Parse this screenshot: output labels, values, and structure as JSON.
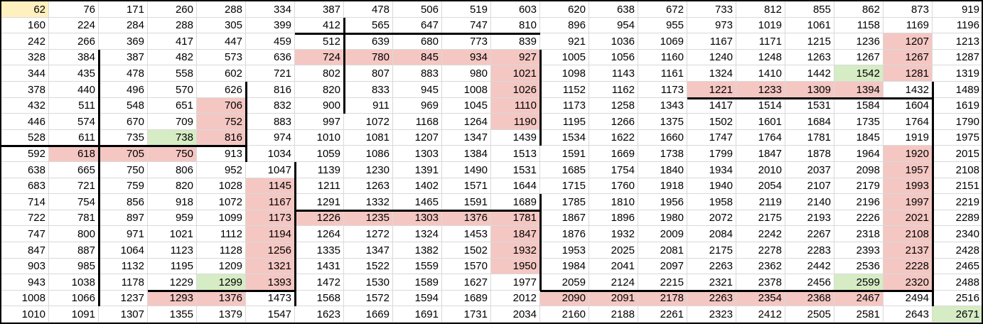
{
  "colors": {
    "red": "#f4c7c3",
    "green": "#d6ecc4",
    "yellow": "#fff0c0"
  },
  "grid": [
    [
      62,
      76,
      171,
      260,
      288,
      334,
      387,
      478,
      506,
      519,
      603,
      620,
      638,
      672,
      733,
      812,
      855,
      862,
      873,
      919
    ],
    [
      160,
      224,
      284,
      288,
      305,
      399,
      412,
      565,
      647,
      747,
      810,
      896,
      954,
      955,
      973,
      1019,
      1061,
      1158,
      1169,
      1196
    ],
    [
      242,
      266,
      369,
      417,
      447,
      459,
      512,
      639,
      680,
      773,
      839,
      921,
      1036,
      1069,
      1167,
      1171,
      1215,
      1236,
      1207,
      1213
    ],
    [
      328,
      384,
      387,
      482,
      573,
      636,
      724,
      780,
      845,
      934,
      927,
      1005,
      1056,
      1160,
      1240,
      1248,
      1263,
      1267,
      1267,
      1287
    ],
    [
      344,
      435,
      478,
      558,
      602,
      721,
      802,
      807,
      883,
      980,
      1021,
      1098,
      1143,
      1161,
      1324,
      1410,
      1442,
      1542,
      1281,
      1319
    ],
    [
      378,
      440,
      496,
      570,
      626,
      816,
      820,
      833,
      945,
      1008,
      1026,
      1152,
      1162,
      1173,
      1221,
      1233,
      1309,
      1394,
      1432,
      1489
    ],
    [
      432,
      511,
      548,
      651,
      706,
      832,
      900,
      911,
      969,
      1045,
      1110,
      1173,
      1258,
      1343,
      1417,
      1514,
      1531,
      1584,
      1604,
      1619
    ],
    [
      446,
      574,
      670,
      709,
      752,
      883,
      997,
      1072,
      1168,
      1264,
      1190,
      1195,
      1266,
      1375,
      1502,
      1601,
      1684,
      1735,
      1764,
      1790
    ],
    [
      528,
      611,
      735,
      738,
      816,
      974,
      1010,
      1081,
      1207,
      1347,
      1439,
      1534,
      1622,
      1660,
      1747,
      1764,
      1781,
      1845,
      1919,
      1975
    ],
    [
      592,
      618,
      705,
      750,
      913,
      1034,
      1059,
      1086,
      1303,
      1384,
      1513,
      1591,
      1669,
      1738,
      1799,
      1847,
      1878,
      1964,
      1920,
      2015
    ],
    [
      638,
      665,
      750,
      806,
      952,
      1047,
      1139,
      1230,
      1391,
      1490,
      1531,
      1685,
      1754,
      1840,
      1934,
      2010,
      2037,
      2098,
      1957,
      2108
    ],
    [
      683,
      721,
      759,
      820,
      1028,
      1145,
      1211,
      1263,
      1402,
      1571,
      1644,
      1715,
      1760,
      1918,
      1940,
      2054,
      2107,
      2179,
      1993,
      2151
    ],
    [
      714,
      754,
      856,
      918,
      1072,
      1167,
      1291,
      1332,
      1465,
      1591,
      1689,
      1785,
      1810,
      1956,
      1958,
      2119,
      2140,
      2196,
      1997,
      2219
    ],
    [
      722,
      781,
      897,
      959,
      1099,
      1173,
      1226,
      1235,
      1303,
      1376,
      1781,
      1867,
      1896,
      1980,
      2072,
      2175,
      2193,
      2226,
      2021,
      2289
    ],
    [
      747,
      800,
      971,
      1021,
      1112,
      1194,
      1264,
      1272,
      1324,
      1453,
      1847,
      1876,
      1932,
      2009,
      2084,
      2242,
      2267,
      2318,
      2108,
      2340
    ],
    [
      847,
      887,
      1064,
      1123,
      1128,
      1256,
      1335,
      1347,
      1382,
      1502,
      1932,
      1953,
      2025,
      2081,
      2175,
      2278,
      2283,
      2393,
      2137,
      2428
    ],
    [
      903,
      985,
      1132,
      1195,
      1209,
      1321,
      1431,
      1522,
      1559,
      1570,
      1950,
      1984,
      2041,
      2097,
      2263,
      2362,
      2442,
      2536,
      2228,
      2465
    ],
    [
      943,
      1038,
      1178,
      1229,
      1299,
      1393,
      1472,
      1530,
      1589,
      1627,
      1977,
      2059,
      2124,
      2215,
      2321,
      2378,
      2456,
      2599,
      2320,
      2488
    ],
    [
      1008,
      1066,
      1237,
      1293,
      1376,
      1473,
      1568,
      1572,
      1594,
      1689,
      2012,
      2090,
      2091,
      2178,
      2263,
      2354,
      2368,
      2467,
      2494,
      2516
    ],
    [
      1010,
      1091,
      1307,
      1355,
      1379,
      1547,
      1623,
      1669,
      1691,
      1731,
      2034,
      2160,
      2188,
      2261,
      2323,
      2412,
      2505,
      2581,
      2643,
      2671
    ]
  ],
  "highlights": [
    {
      "row": 0,
      "col": 0,
      "color": "yellow"
    },
    {
      "row": 2,
      "col": 18,
      "color": "red"
    },
    {
      "row": 3,
      "col": 6,
      "color": "red"
    },
    {
      "row": 3,
      "col": 7,
      "color": "red"
    },
    {
      "row": 3,
      "col": 8,
      "color": "red"
    },
    {
      "row": 3,
      "col": 9,
      "color": "red"
    },
    {
      "row": 3,
      "col": 10,
      "color": "red"
    },
    {
      "row": 3,
      "col": 18,
      "color": "red"
    },
    {
      "row": 4,
      "col": 10,
      "color": "red"
    },
    {
      "row": 4,
      "col": 17,
      "color": "green"
    },
    {
      "row": 4,
      "col": 18,
      "color": "red"
    },
    {
      "row": 5,
      "col": 10,
      "color": "red"
    },
    {
      "row": 5,
      "col": 14,
      "color": "red"
    },
    {
      "row": 5,
      "col": 15,
      "color": "red"
    },
    {
      "row": 5,
      "col": 16,
      "color": "red"
    },
    {
      "row": 5,
      "col": 17,
      "color": "red"
    },
    {
      "row": 6,
      "col": 4,
      "color": "red"
    },
    {
      "row": 6,
      "col": 10,
      "color": "red"
    },
    {
      "row": 7,
      "col": 4,
      "color": "red"
    },
    {
      "row": 7,
      "col": 10,
      "color": "red"
    },
    {
      "row": 8,
      "col": 3,
      "color": "green"
    },
    {
      "row": 8,
      "col": 4,
      "color": "red"
    },
    {
      "row": 9,
      "col": 1,
      "color": "red"
    },
    {
      "row": 9,
      "col": 2,
      "color": "red"
    },
    {
      "row": 9,
      "col": 3,
      "color": "red"
    },
    {
      "row": 9,
      "col": 18,
      "color": "red"
    },
    {
      "row": 10,
      "col": 18,
      "color": "red"
    },
    {
      "row": 11,
      "col": 5,
      "color": "red"
    },
    {
      "row": 11,
      "col": 18,
      "color": "red"
    },
    {
      "row": 12,
      "col": 5,
      "color": "red"
    },
    {
      "row": 12,
      "col": 18,
      "color": "red"
    },
    {
      "row": 13,
      "col": 5,
      "color": "red"
    },
    {
      "row": 13,
      "col": 6,
      "color": "red"
    },
    {
      "row": 13,
      "col": 7,
      "color": "red"
    },
    {
      "row": 13,
      "col": 8,
      "color": "red"
    },
    {
      "row": 13,
      "col": 9,
      "color": "red"
    },
    {
      "row": 13,
      "col": 10,
      "color": "red"
    },
    {
      "row": 13,
      "col": 18,
      "color": "red"
    },
    {
      "row": 14,
      "col": 5,
      "color": "red"
    },
    {
      "row": 14,
      "col": 10,
      "color": "red"
    },
    {
      "row": 14,
      "col": 18,
      "color": "red"
    },
    {
      "row": 15,
      "col": 5,
      "color": "red"
    },
    {
      "row": 15,
      "col": 10,
      "color": "red"
    },
    {
      "row": 15,
      "col": 18,
      "color": "red"
    },
    {
      "row": 16,
      "col": 5,
      "color": "red"
    },
    {
      "row": 16,
      "col": 10,
      "color": "red"
    },
    {
      "row": 16,
      "col": 18,
      "color": "red"
    },
    {
      "row": 17,
      "col": 4,
      "color": "green"
    },
    {
      "row": 17,
      "col": 5,
      "color": "red"
    },
    {
      "row": 17,
      "col": 17,
      "color": "green"
    },
    {
      "row": 17,
      "col": 18,
      "color": "red"
    },
    {
      "row": 18,
      "col": 3,
      "color": "red"
    },
    {
      "row": 18,
      "col": 4,
      "color": "red"
    },
    {
      "row": 18,
      "col": 11,
      "color": "red"
    },
    {
      "row": 18,
      "col": 12,
      "color": "red"
    },
    {
      "row": 18,
      "col": 13,
      "color": "red"
    },
    {
      "row": 18,
      "col": 14,
      "color": "red"
    },
    {
      "row": 18,
      "col": 15,
      "color": "red"
    },
    {
      "row": 18,
      "col": 16,
      "color": "red"
    },
    {
      "row": 18,
      "col": 17,
      "color": "red"
    },
    {
      "row": 19,
      "col": 19,
      "color": "green"
    }
  ]
}
